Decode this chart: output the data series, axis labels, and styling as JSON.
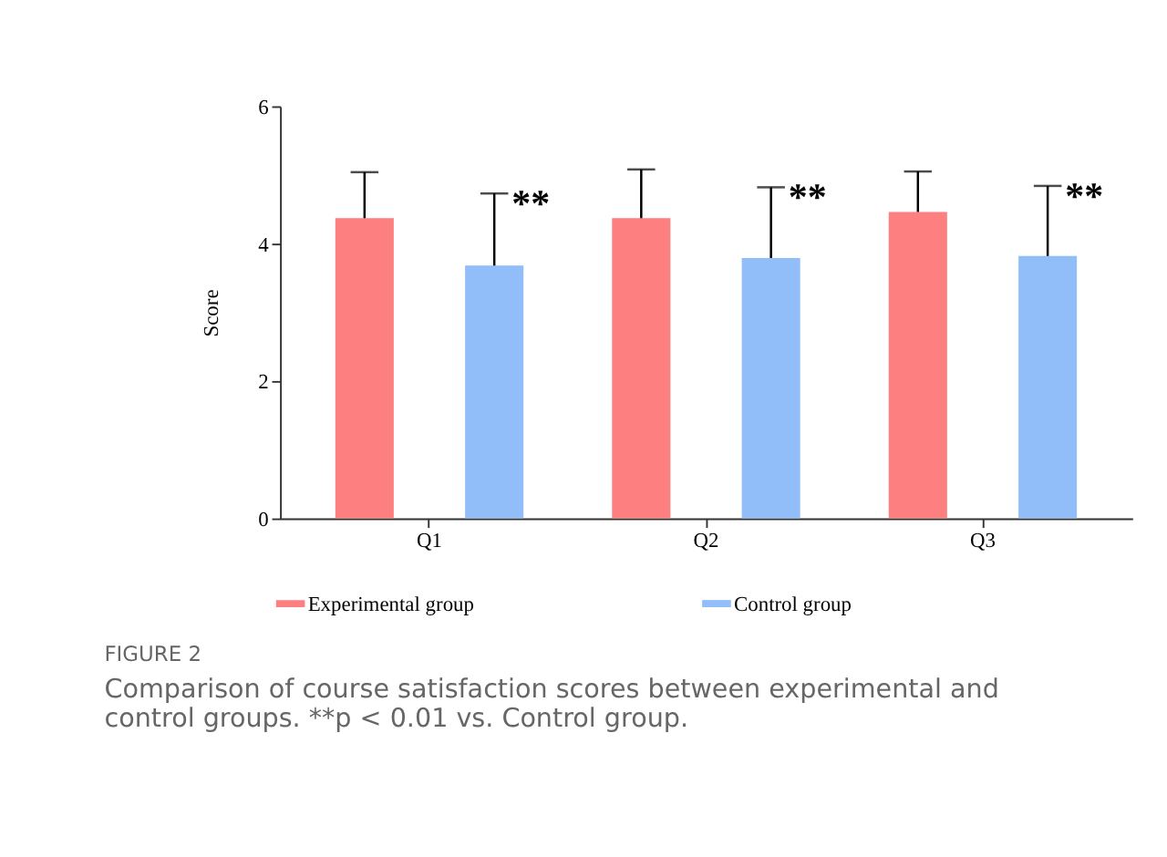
{
  "chart_data": {
    "type": "bar",
    "ylabel": "Score",
    "categories": [
      "Q1",
      "Q2",
      "Q3"
    ],
    "series": [
      {
        "name": "Experimental group",
        "color": "#fd7f7f",
        "values": [
          4.37,
          4.37,
          4.46
        ],
        "errors": [
          [
            4.37,
            5.04
          ],
          [
            4.37,
            5.08
          ],
          [
            4.46,
            5.05
          ]
        ]
      },
      {
        "name": "Control group",
        "color": "#91bdf8",
        "values": [
          3.68,
          3.79,
          3.82
        ],
        "errors": [
          [
            3.68,
            4.73
          ],
          [
            3.79,
            4.82
          ],
          [
            3.82,
            4.84
          ]
        ],
        "value_labels": [
          "**",
          "**",
          "**"
        ]
      }
    ],
    "ylim": [
      0,
      6
    ],
    "yticks": [
      0,
      2,
      4,
      6
    ],
    "grid": false,
    "legend": "bottom",
    "annotations": [
      "FIGURE 2",
      "Comparison of course satisfaction scores between experimental and control groups. **p < 0.01 vs. Control group."
    ]
  }
}
